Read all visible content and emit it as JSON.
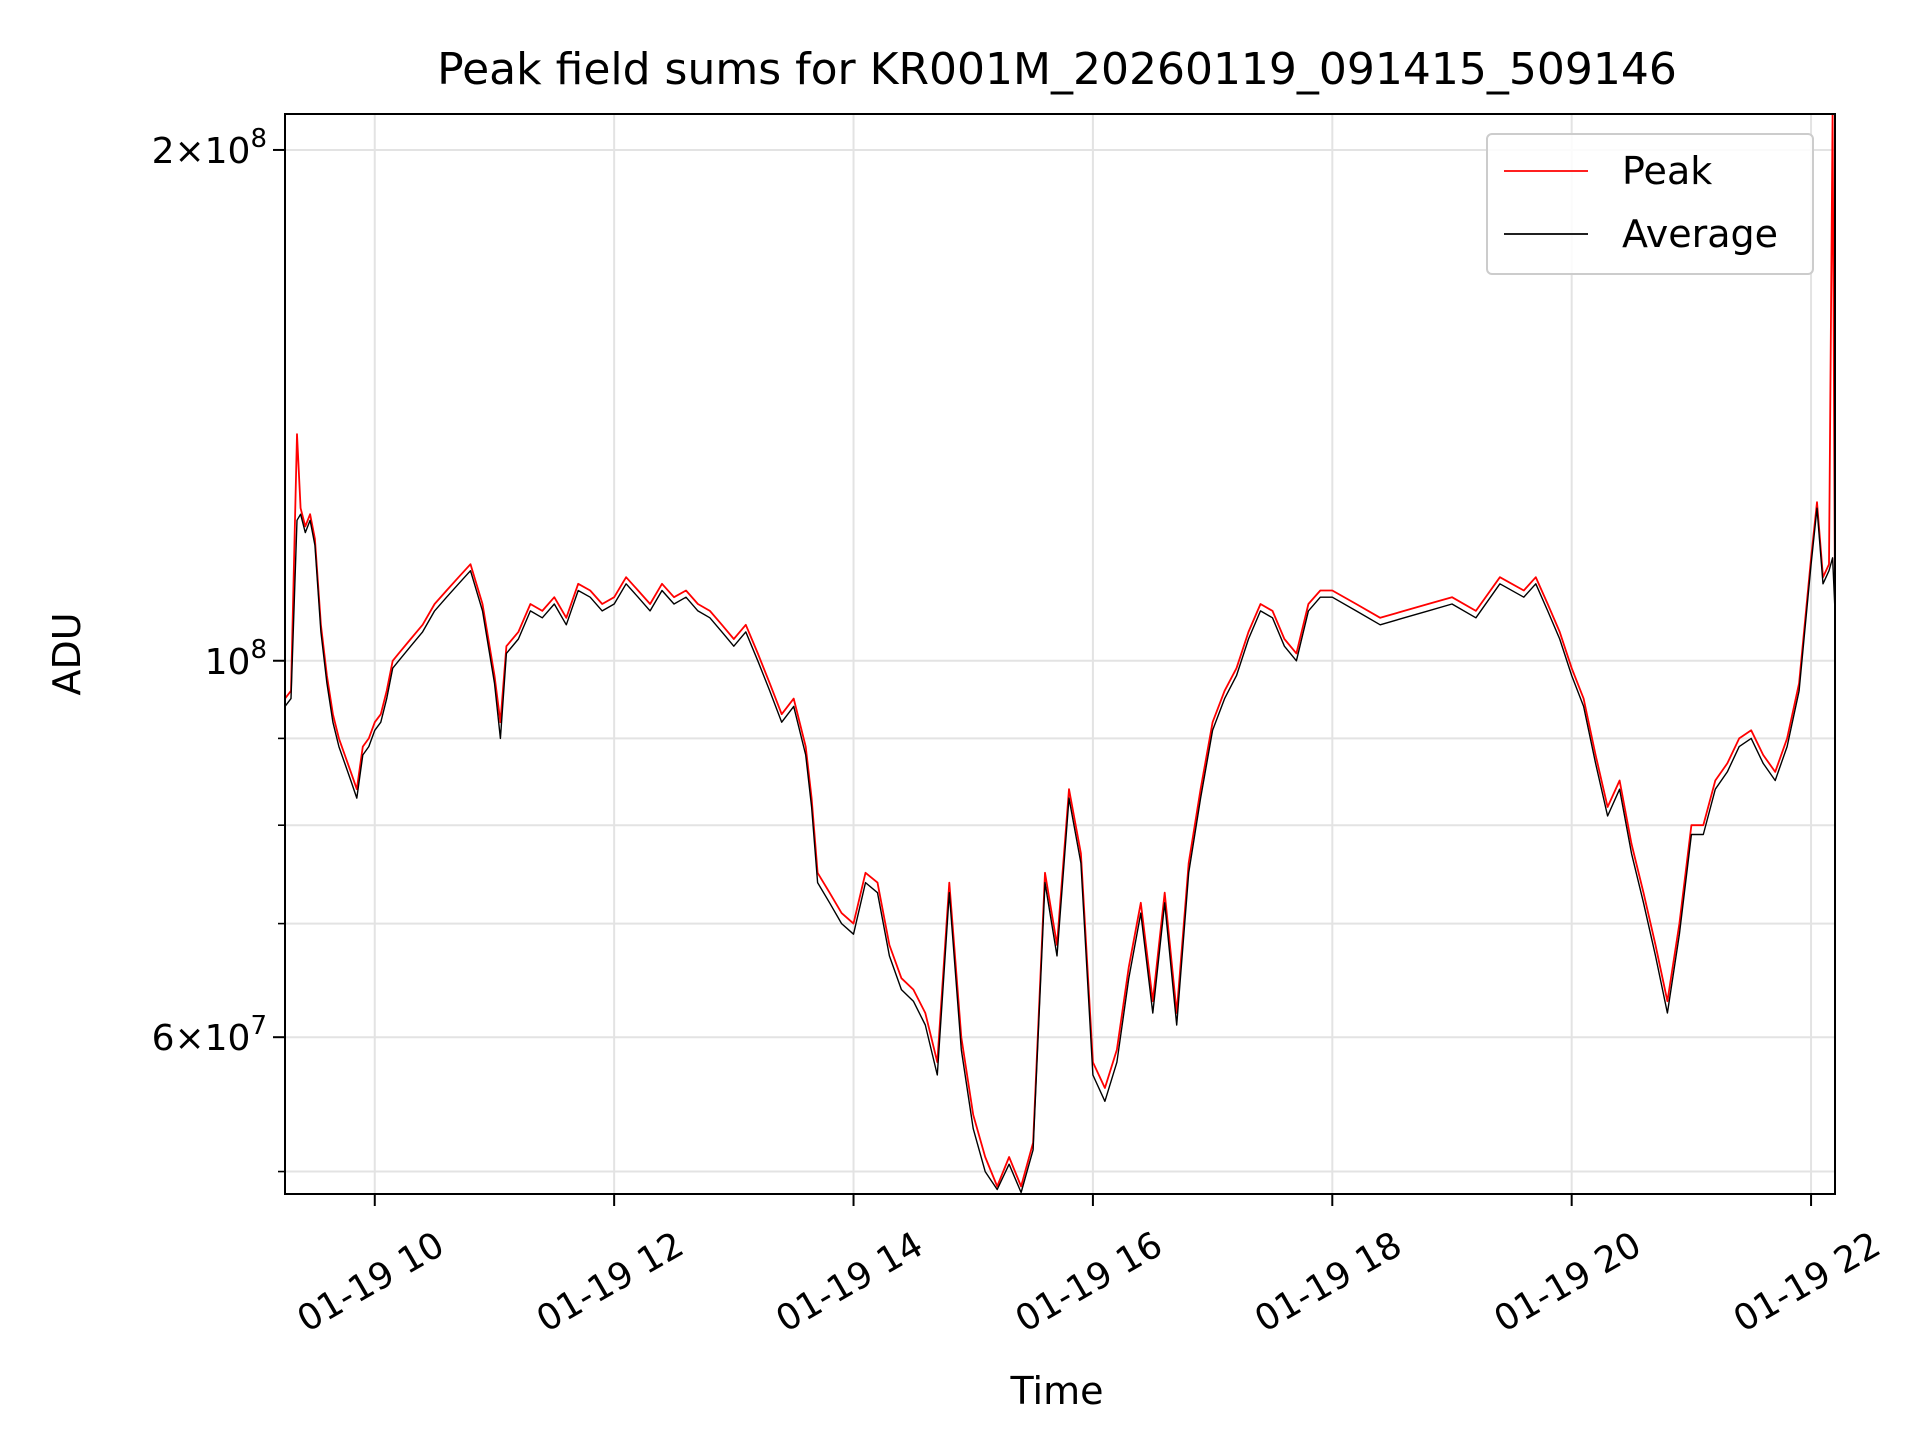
{
  "chart_data": {
    "type": "line",
    "title": "Peak field sums for KR001M_20260119_091415_509146",
    "xlabel": "Time",
    "ylabel": "ADU",
    "yscale": "log",
    "ylim": [
      48500000,
      210000000
    ],
    "xlim": [
      9.25,
      22.2
    ],
    "grid": true,
    "legend_position": "upper right",
    "x_ticks": [
      {
        "value": 10,
        "label": "01-19 10"
      },
      {
        "value": 12,
        "label": "01-19 12"
      },
      {
        "value": 14,
        "label": "01-19 14"
      },
      {
        "value": 16,
        "label": "01-19 16"
      },
      {
        "value": 18,
        "label": "01-19 18"
      },
      {
        "value": 20,
        "label": "01-19 20"
      },
      {
        "value": 22,
        "label": "01-19 22"
      }
    ],
    "y_major_ticks": [
      {
        "value": 60000000,
        "mantissa": "6",
        "exponent": "7"
      },
      {
        "value": 100000000,
        "mantissa": "",
        "exponent": "8"
      },
      {
        "value": 200000000,
        "mantissa": "2",
        "exponent": "8"
      }
    ],
    "y_minor_ticks": [
      50000000,
      70000000,
      80000000,
      90000000
    ],
    "x": [
      9.25,
      9.3,
      9.35,
      9.38,
      9.42,
      9.46,
      9.5,
      9.55,
      9.6,
      9.65,
      9.7,
      9.75,
      9.8,
      9.85,
      9.9,
      9.95,
      10.0,
      10.05,
      10.1,
      10.15,
      10.2,
      10.3,
      10.4,
      10.5,
      10.6,
      10.7,
      10.8,
      10.9,
      11.0,
      11.05,
      11.1,
      11.2,
      11.3,
      11.4,
      11.5,
      11.6,
      11.7,
      11.8,
      11.9,
      12.0,
      12.1,
      12.2,
      12.3,
      12.4,
      12.5,
      12.6,
      12.7,
      12.8,
      12.9,
      13.0,
      13.1,
      13.2,
      13.3,
      13.4,
      13.5,
      13.6,
      13.65,
      13.7,
      13.8,
      13.9,
      14.0,
      14.1,
      14.2,
      14.3,
      14.4,
      14.5,
      14.6,
      14.7,
      14.8,
      14.9,
      15.0,
      15.1,
      15.2,
      15.3,
      15.4,
      15.5,
      15.6,
      15.7,
      15.8,
      15.9,
      16.0,
      16.1,
      16.2,
      16.3,
      16.4,
      16.5,
      16.6,
      16.7,
      16.8,
      16.9,
      17.0,
      17.1,
      17.2,
      17.3,
      17.4,
      17.5,
      17.6,
      17.7,
      17.8,
      17.9,
      18.0,
      18.2,
      18.4,
      18.6,
      18.8,
      19.0,
      19.2,
      19.4,
      19.6,
      19.7,
      19.8,
      19.9,
      20.0,
      20.1,
      20.2,
      20.3,
      20.4,
      20.5,
      20.6,
      20.7,
      20.8,
      20.9,
      21.0,
      21.1,
      21.2,
      21.3,
      21.4,
      21.5,
      21.6,
      21.7,
      21.8,
      21.9,
      22.0,
      22.05,
      22.1,
      22.15,
      22.18,
      22.2
    ],
    "series": [
      {
        "name": "Peak",
        "color": "#ff0000",
        "values": [
          95000000,
          96000000,
          136000000,
          123000000,
          120000000,
          122000000,
          118000000,
          105000000,
          98000000,
          93000000,
          90000000,
          88000000,
          86000000,
          84000000,
          89000000,
          90000000,
          92000000,
          93000000,
          96000000,
          100000000,
          101000000,
          103000000,
          105000000,
          108000000,
          110000000,
          112000000,
          114000000,
          108000000,
          98000000,
          92000000,
          102000000,
          104000000,
          108000000,
          107000000,
          109000000,
          106000000,
          111000000,
          110000000,
          108000000,
          109000000,
          112000000,
          110000000,
          108000000,
          111000000,
          109000000,
          110000000,
          108000000,
          107000000,
          105000000,
          103000000,
          105000000,
          101000000,
          97000000,
          93000000,
          95000000,
          89000000,
          83000000,
          75000000,
          73000000,
          71000000,
          70000000,
          75000000,
          74000000,
          68000000,
          65000000,
          64000000,
          62000000,
          58000000,
          74000000,
          60000000,
          54000000,
          51000000,
          49000000,
          51000000,
          49000000,
          52000000,
          75000000,
          68000000,
          84000000,
          77000000,
          58000000,
          56000000,
          59000000,
          66000000,
          72000000,
          63000000,
          73000000,
          62000000,
          76000000,
          84000000,
          92000000,
          96000000,
          99000000,
          104000000,
          108000000,
          107000000,
          103000000,
          101000000,
          108000000,
          110000000,
          110000000,
          108000000,
          106000000,
          107000000,
          108000000,
          109000000,
          107000000,
          112000000,
          110000000,
          112000000,
          108000000,
          104000000,
          99000000,
          95000000,
          88000000,
          82000000,
          85000000,
          78000000,
          73000000,
          68000000,
          63000000,
          70000000,
          80000000,
          80000000,
          85000000,
          87000000,
          90000000,
          91000000,
          88000000,
          86000000,
          90000000,
          97000000,
          115000000,
          124000000,
          112000000,
          114000000,
          210000000,
          108000000
        ]
      },
      {
        "name": "Average",
        "color": "#000000",
        "values": [
          94000000,
          95000000,
          121000000,
          122000000,
          119000000,
          121000000,
          117000000,
          104000000,
          97000000,
          92000000,
          89000000,
          87000000,
          85000000,
          83000000,
          88000000,
          89000000,
          91000000,
          92000000,
          95000000,
          99000000,
          100000000,
          102000000,
          104000000,
          107000000,
          109000000,
          111000000,
          113000000,
          107000000,
          97000000,
          90000000,
          101000000,
          103000000,
          107000000,
          106000000,
          108000000,
          105000000,
          110000000,
          109000000,
          107000000,
          108000000,
          111000000,
          109000000,
          107000000,
          110000000,
          108000000,
          109000000,
          107000000,
          106000000,
          104000000,
          102000000,
          104000000,
          100000000,
          96000000,
          92000000,
          94000000,
          88000000,
          82000000,
          74000000,
          72000000,
          70000000,
          69000000,
          74000000,
          73000000,
          67000000,
          64000000,
          63000000,
          61000000,
          57000000,
          73000000,
          59000000,
          53000000,
          50000000,
          48800000,
          50500000,
          48600000,
          51500000,
          74000000,
          67000000,
          83000000,
          76000000,
          57000000,
          55000000,
          58000000,
          65000000,
          71000000,
          62000000,
          72000000,
          61000000,
          75000000,
          83000000,
          91000000,
          95000000,
          98000000,
          103000000,
          107000000,
          106000000,
          102000000,
          100000000,
          107000000,
          109000000,
          109000000,
          107000000,
          105000000,
          106000000,
          107000000,
          108000000,
          106000000,
          111000000,
          109000000,
          111000000,
          107000000,
          103000000,
          98000000,
          94000000,
          87000000,
          81000000,
          84000000,
          77000000,
          72000000,
          67000000,
          62000000,
          69000000,
          79000000,
          79000000,
          84000000,
          86000000,
          89000000,
          90000000,
          87000000,
          85000000,
          89000000,
          96000000,
          114000000,
          123000000,
          111000000,
          113000000,
          115000000,
          107000000
        ]
      }
    ]
  }
}
